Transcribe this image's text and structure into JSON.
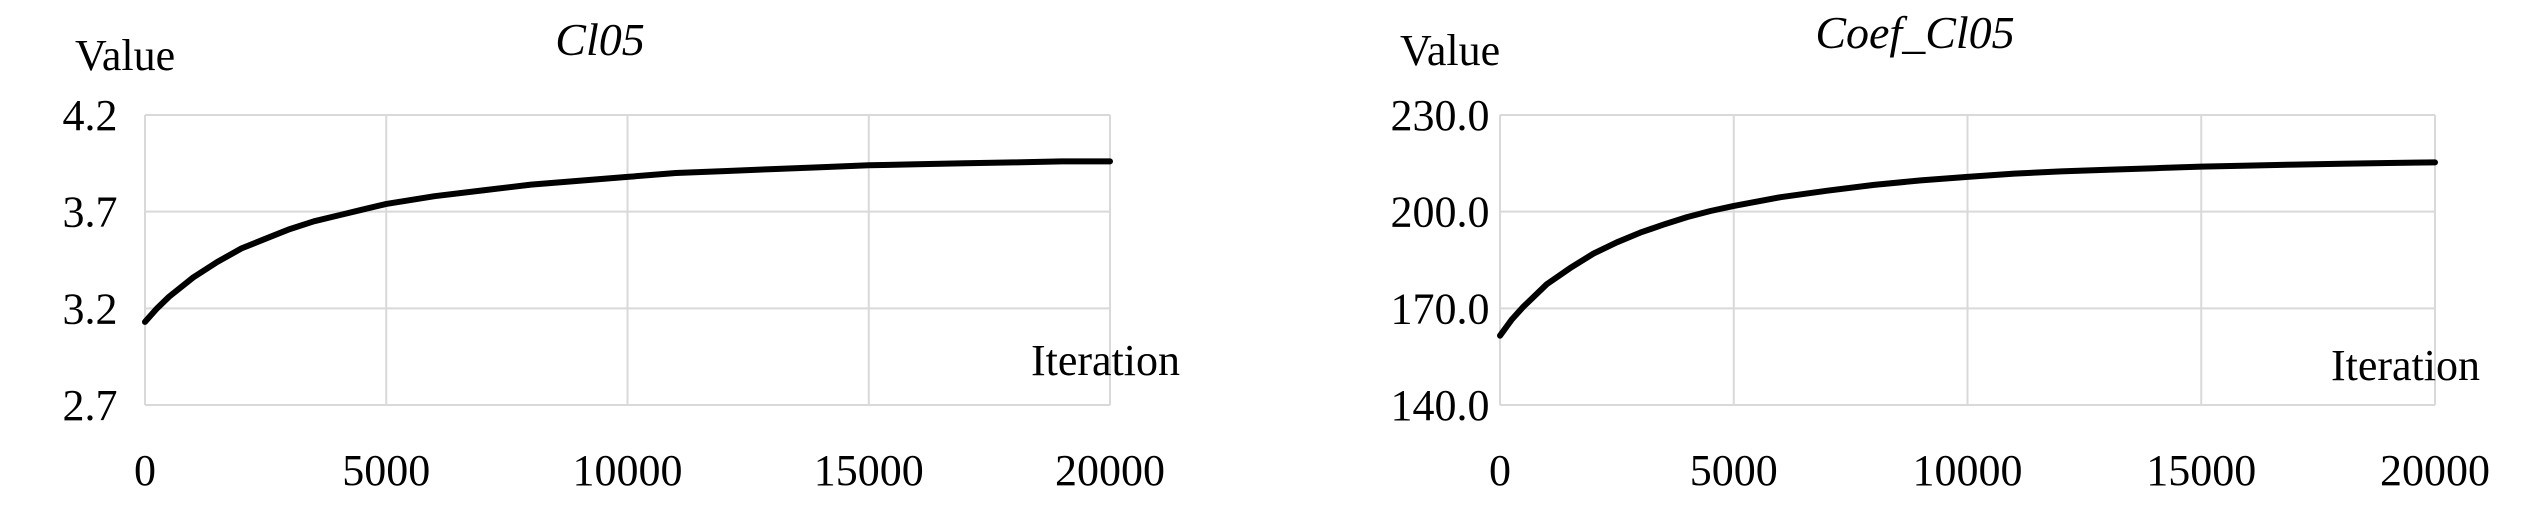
{
  "chart_data": [
    {
      "type": "line",
      "title": "Cl05",
      "xlabel": "Iteration",
      "ylabel": "Value",
      "xlim": [
        0,
        20000
      ],
      "ylim": [
        2.7,
        4.2
      ],
      "xticks": [
        0,
        5000,
        10000,
        15000,
        20000
      ],
      "yticks": [
        2.7,
        3.2,
        3.7,
        4.2
      ],
      "ytick_labels": [
        "2.7",
        "3.2",
        "3.7",
        "4.2"
      ],
      "grid": true,
      "series": [
        {
          "x": [
            0,
            250,
            500,
            1000,
            1500,
            2000,
            2500,
            3000,
            3500,
            4000,
            4500,
            5000,
            6000,
            7000,
            8000,
            9000,
            10000,
            11000,
            12000,
            13000,
            14000,
            15000,
            16000,
            17000,
            18000,
            19000,
            20000
          ],
          "y": [
            3.13,
            3.2,
            3.26,
            3.36,
            3.44,
            3.51,
            3.56,
            3.61,
            3.65,
            3.68,
            3.71,
            3.74,
            3.78,
            3.81,
            3.84,
            3.86,
            3.88,
            3.9,
            3.91,
            3.92,
            3.93,
            3.94,
            3.945,
            3.95,
            3.955,
            3.96,
            3.96
          ]
        }
      ]
    },
    {
      "type": "line",
      "title": "Coef_Cl05",
      "xlabel": "Iteration",
      "ylabel": "Value",
      "xlim": [
        0,
        20000
      ],
      "ylim": [
        140,
        230
      ],
      "xticks": [
        0,
        5000,
        10000,
        15000,
        20000
      ],
      "yticks": [
        140,
        170,
        200,
        230
      ],
      "ytick_labels": [
        "140.0",
        "170.0",
        "200.0",
        "230.0"
      ],
      "grid": true,
      "series": [
        {
          "x": [
            0,
            250,
            500,
            1000,
            1500,
            2000,
            2500,
            3000,
            3500,
            4000,
            4500,
            5000,
            6000,
            7000,
            8000,
            9000,
            10000,
            11000,
            12000,
            13000,
            14000,
            15000,
            16000,
            17000,
            18000,
            19000,
            20000
          ],
          "y": [
            161.5,
            166.5,
            170.5,
            177.5,
            182.5,
            187,
            190.5,
            193.5,
            196,
            198.3,
            200.2,
            201.8,
            204.5,
            206.5,
            208.3,
            209.7,
            210.8,
            211.8,
            212.5,
            213,
            213.5,
            214,
            214.3,
            214.6,
            214.9,
            215.1,
            215.3
          ]
        }
      ]
    }
  ]
}
